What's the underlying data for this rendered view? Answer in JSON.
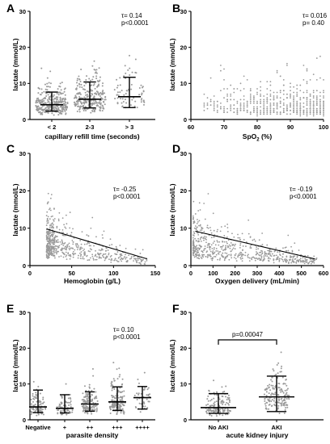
{
  "chart_data": [
    {
      "panel": "A",
      "type": "scatter",
      "categories": [
        "< 2",
        "2-3",
        "> 3"
      ],
      "summary": [
        {
          "median": 4.1,
          "q1": 2.3,
          "q3": 7.6,
          "max": 29
        },
        {
          "median": 5.6,
          "q1": 3.2,
          "q3": 10.4,
          "max": 24
        },
        {
          "median": 6.3,
          "q1": 3.3,
          "q3": 11.7,
          "max": 24
        }
      ],
      "xlabel": "capillary refill time (seconds)",
      "ylabel": "lactate (mmol/L)",
      "ylim": [
        0,
        30
      ],
      "yticks": [
        0,
        10,
        20,
        30
      ],
      "annotations": [
        "τ= 0.14",
        "p<0.0001"
      ]
    },
    {
      "panel": "B",
      "type": "scatter",
      "xlabel": "SpO2 (%)",
      "ylabel": "lactate (mmol/L)",
      "xlim": [
        60,
        100
      ],
      "ylim": [
        0,
        30
      ],
      "xticks": [
        60,
        70,
        80,
        90,
        100
      ],
      "yticks": [
        0,
        10,
        20,
        30
      ],
      "annotations": [
        "τ= 0.016",
        "p= 0.40"
      ]
    },
    {
      "panel": "C",
      "type": "scatter",
      "xlabel": "Hemoglobin (g/L)",
      "ylabel": "lactate (mmol/L)",
      "xlim": [
        0,
        150
      ],
      "ylim": [
        0,
        30
      ],
      "xticks": [
        0,
        50,
        100,
        150
      ],
      "yticks": [
        0,
        10,
        20,
        30
      ],
      "trend": [
        [
          20,
          9.8
        ],
        [
          140,
          1.8
        ]
      ],
      "annotations": [
        "τ= -0.25",
        "p<0.0001"
      ]
    },
    {
      "panel": "D",
      "type": "scatter",
      "xlabel": "Oxygen delivery (mL/min)",
      "ylabel": "lactate (mmol/L)",
      "xlim": [
        0,
        600
      ],
      "ylim": [
        0,
        30
      ],
      "xticks": [
        0,
        100,
        200,
        300,
        400,
        500,
        600
      ],
      "yticks": [
        0,
        10,
        20,
        30
      ],
      "trend": [
        [
          20,
          9.2
        ],
        [
          560,
          1.8
        ]
      ],
      "annotations": [
        "τ= -0.19",
        "p<0.0001"
      ]
    },
    {
      "panel": "E",
      "type": "scatter",
      "categories": [
        "Negative",
        "+",
        "++",
        "+++",
        "++++"
      ],
      "summary": [
        {
          "median": 3.6,
          "q1": 2.0,
          "q3": 8.3,
          "max": 20
        },
        {
          "median": 3.2,
          "q1": 1.9,
          "q3": 7.0,
          "max": 20
        },
        {
          "median": 4.4,
          "q1": 2.4,
          "q3": 7.8,
          "max": 22
        },
        {
          "median": 5.0,
          "q1": 2.6,
          "q3": 9.2,
          "max": 22
        },
        {
          "median": 6.2,
          "q1": 3.0,
          "q3": 9.3,
          "max": 18
        }
      ],
      "xlabel": "parasite density",
      "ylabel": "lactate (mmol/L)",
      "ylim": [
        0,
        30
      ],
      "yticks": [
        0,
        10,
        20,
        30
      ],
      "annotations": [
        "τ= 0.10",
        "p<0.0001"
      ]
    },
    {
      "panel": "F",
      "type": "scatter",
      "categories": [
        "No AKI",
        "AKI"
      ],
      "summary": [
        {
          "median": 3.4,
          "q1": 1.8,
          "q3": 7.3,
          "max": 20
        },
        {
          "median": 6.4,
          "q1": 2.3,
          "q3": 12.2,
          "max": 20
        }
      ],
      "xlabel": "acute kidney injury",
      "ylabel": "lactate (mmol/L)",
      "ylim": [
        0,
        30
      ],
      "yticks": [
        0,
        10,
        20,
        30
      ],
      "annotations": [
        "p=0.00047"
      ]
    }
  ]
}
